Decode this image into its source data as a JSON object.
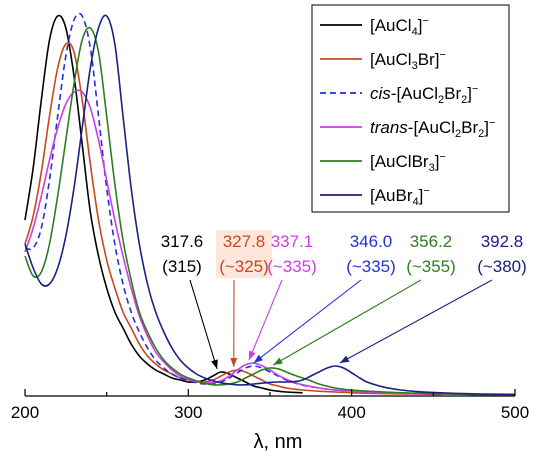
{
  "chart_data": {
    "type": "line",
    "xlabel": "λ, nm",
    "ylabel": "",
    "xlim": [
      200,
      500
    ],
    "xticks": [
      200,
      300,
      400,
      500
    ],
    "yticks_shown": false,
    "grid": false,
    "legend_position": "top-right",
    "series": [
      {
        "id": "AuCl4",
        "color": "#000000",
        "dashed": false,
        "legend": {
          "prefix": "",
          "italic": "",
          "middle": "[AuCl",
          "sub1": "4",
          "mid2": "",
          "sub2": "",
          "suffix": "]",
          "sup": "−"
        },
        "x": [
          200,
          205,
          210,
          215,
          220,
          225,
          230,
          235,
          240,
          245,
          250,
          255,
          260,
          265,
          270,
          275,
          280,
          285,
          290,
          295,
          300,
          305,
          310,
          315,
          320,
          325,
          330,
          335,
          340,
          345,
          350,
          355,
          360,
          365,
          370
        ],
        "y": [
          0.44,
          0.57,
          0.74,
          0.89,
          0.95,
          0.92,
          0.8,
          0.63,
          0.46,
          0.35,
          0.27,
          0.21,
          0.17,
          0.13,
          0.1,
          0.08,
          0.065,
          0.055,
          0.045,
          0.04,
          0.035,
          0.035,
          0.04,
          0.05,
          0.06,
          0.055,
          0.045,
          0.035,
          0.025,
          0.02,
          0.015,
          0.012,
          0.01,
          0.009,
          0.008
        ]
      },
      {
        "id": "AuCl3Br",
        "color": "#c8471f",
        "dashed": false,
        "legend": {
          "prefix": "",
          "italic": "",
          "middle": "[AuCl",
          "sub1": "3",
          "mid2": "Br",
          "sub2": "",
          "suffix": "]",
          "sup": "−"
        },
        "x": [
          200,
          205,
          210,
          215,
          220,
          225,
          230,
          235,
          240,
          245,
          250,
          255,
          260,
          265,
          270,
          275,
          280,
          285,
          290,
          295,
          300,
          305,
          310,
          315,
          320,
          325,
          330,
          335,
          340,
          345,
          350,
          355,
          360,
          365,
          370,
          380,
          390,
          400,
          420,
          440,
          455
        ],
        "y": [
          0.38,
          0.45,
          0.56,
          0.7,
          0.82,
          0.88,
          0.86,
          0.74,
          0.58,
          0.44,
          0.34,
          0.27,
          0.21,
          0.17,
          0.13,
          0.1,
          0.08,
          0.065,
          0.055,
          0.045,
          0.04,
          0.035,
          0.035,
          0.04,
          0.05,
          0.06,
          0.065,
          0.06,
          0.05,
          0.04,
          0.03,
          0.025,
          0.02,
          0.017,
          0.015,
          0.012,
          0.01,
          0.008,
          0.006,
          0.005,
          0.004
        ]
      },
      {
        "id": "cisAuCl2Br2",
        "color": "#2330d8",
        "dashed": true,
        "legend": {
          "prefix": "",
          "italic": "cis",
          "middle": "-[AuCl",
          "sub1": "2",
          "mid2": "Br",
          "sub2": "2",
          "suffix": "]",
          "sup": "−"
        },
        "x": [
          200,
          205,
          210,
          215,
          220,
          225,
          230,
          235,
          240,
          245,
          250,
          255,
          260,
          265,
          270,
          275,
          280,
          285,
          290,
          295,
          300,
          305,
          310,
          315,
          320,
          325,
          330,
          335,
          340,
          345,
          350,
          355,
          360,
          365,
          370,
          380,
          390,
          400,
          420,
          440,
          460,
          480,
          500
        ],
        "y": [
          0.37,
          0.37,
          0.42,
          0.54,
          0.7,
          0.85,
          0.94,
          0.95,
          0.87,
          0.7,
          0.52,
          0.38,
          0.28,
          0.21,
          0.16,
          0.12,
          0.09,
          0.07,
          0.055,
          0.045,
          0.038,
          0.033,
          0.03,
          0.03,
          0.035,
          0.045,
          0.058,
          0.07,
          0.075,
          0.07,
          0.06,
          0.05,
          0.04,
          0.033,
          0.027,
          0.02,
          0.015,
          0.012,
          0.008,
          0.006,
          0.005,
          0.004,
          0.004
        ]
      },
      {
        "id": "transAuCl2Br2",
        "color": "#cc3ee6",
        "dashed": false,
        "legend": {
          "prefix": "",
          "italic": "trans",
          "middle": "-[AuCl",
          "sub1": "2",
          "mid2": "Br",
          "sub2": "2",
          "suffix": "]",
          "sup": "−"
        },
        "x": [
          200,
          205,
          210,
          215,
          220,
          225,
          230,
          235,
          240,
          245,
          250,
          255,
          260,
          265,
          270,
          275,
          280,
          285,
          290,
          295,
          300,
          305,
          310,
          315,
          320,
          325,
          330,
          335,
          340,
          345,
          350,
          355,
          360,
          365,
          370,
          380,
          390,
          400,
          420,
          440,
          460,
          480,
          500
        ],
        "y": [
          0.36,
          0.42,
          0.5,
          0.59,
          0.67,
          0.73,
          0.76,
          0.76,
          0.72,
          0.64,
          0.54,
          0.44,
          0.35,
          0.27,
          0.2,
          0.15,
          0.11,
          0.085,
          0.065,
          0.05,
          0.042,
          0.036,
          0.033,
          0.033,
          0.038,
          0.05,
          0.065,
          0.078,
          0.082,
          0.076,
          0.065,
          0.052,
          0.042,
          0.034,
          0.028,
          0.02,
          0.015,
          0.012,
          0.008,
          0.006,
          0.005,
          0.004,
          0.004
        ]
      },
      {
        "id": "AuClBr3",
        "color": "#2e7d1e",
        "dashed": false,
        "legend": {
          "prefix": "",
          "italic": "",
          "middle": "[AuClBr",
          "sub1": "3",
          "mid2": "",
          "sub2": "",
          "suffix": "]",
          "sup": "−"
        },
        "x": [
          200,
          205,
          210,
          215,
          220,
          225,
          230,
          235,
          240,
          245,
          250,
          255,
          260,
          265,
          270,
          275,
          280,
          285,
          290,
          295,
          300,
          305,
          310,
          315,
          320,
          325,
          330,
          335,
          340,
          345,
          350,
          355,
          360,
          365,
          370,
          375,
          380,
          390,
          400,
          420,
          440,
          460,
          480,
          500
        ],
        "y": [
          0.35,
          0.3,
          0.31,
          0.38,
          0.5,
          0.64,
          0.78,
          0.89,
          0.92,
          0.86,
          0.7,
          0.53,
          0.39,
          0.29,
          0.21,
          0.16,
          0.12,
          0.09,
          0.07,
          0.055,
          0.045,
          0.038,
          0.032,
          0.028,
          0.028,
          0.03,
          0.035,
          0.045,
          0.055,
          0.065,
          0.07,
          0.068,
          0.06,
          0.052,
          0.045,
          0.038,
          0.03,
          0.02,
          0.015,
          0.01,
          0.007,
          0.005,
          0.004,
          0.004
        ]
      },
      {
        "id": "AuBr4",
        "color": "#1a2180",
        "dashed": false,
        "legend": {
          "prefix": "",
          "italic": "",
          "middle": "[AuBr",
          "sub1": "4",
          "mid2": "",
          "sub2": "",
          "suffix": "]",
          "sup": "−"
        },
        "x": [
          200,
          205,
          210,
          215,
          220,
          225,
          230,
          235,
          240,
          245,
          250,
          255,
          260,
          265,
          270,
          275,
          280,
          285,
          290,
          295,
          300,
          305,
          310,
          315,
          320,
          325,
          330,
          335,
          340,
          345,
          350,
          355,
          360,
          365,
          370,
          375,
          380,
          385,
          390,
          395,
          400,
          405,
          410,
          420,
          430,
          440,
          460,
          480,
          500
        ],
        "y": [
          0.38,
          0.32,
          0.28,
          0.28,
          0.32,
          0.4,
          0.52,
          0.67,
          0.82,
          0.92,
          0.95,
          0.88,
          0.7,
          0.52,
          0.38,
          0.28,
          0.21,
          0.16,
          0.12,
          0.09,
          0.07,
          0.055,
          0.045,
          0.038,
          0.033,
          0.03,
          0.028,
          0.028,
          0.03,
          0.032,
          0.034,
          0.035,
          0.035,
          0.036,
          0.04,
          0.05,
          0.06,
          0.07,
          0.075,
          0.07,
          0.058,
          0.045,
          0.034,
          0.022,
          0.015,
          0.011,
          0.007,
          0.005,
          0.004
        ]
      }
    ],
    "annotations": [
      {
        "value": "317.6",
        "assign": "(315)",
        "color": "#000000",
        "target_x": 317.6,
        "target_y": 0.06
      },
      {
        "value": "327.8",
        "assign": "(~325)",
        "color": "#c8471f",
        "target_x": 327.8,
        "target_y": 0.065,
        "boxed": true
      },
      {
        "value": "337.1",
        "assign": "(~335)",
        "color": "#cc3ee6",
        "target_x": 337.1,
        "target_y": 0.082
      },
      {
        "value": "346.0",
        "assign": "(~335)",
        "color": "#2330d8",
        "target_x": 340.0,
        "target_y": 0.075
      },
      {
        "value": "356.2",
        "assign": "(~355)",
        "color": "#2e7d1e",
        "target_x": 352.0,
        "target_y": 0.07
      },
      {
        "value": "392.8",
        "assign": "(~380)",
        "color": "#1a2180",
        "target_x": 392.8,
        "target_y": 0.075
      }
    ]
  }
}
